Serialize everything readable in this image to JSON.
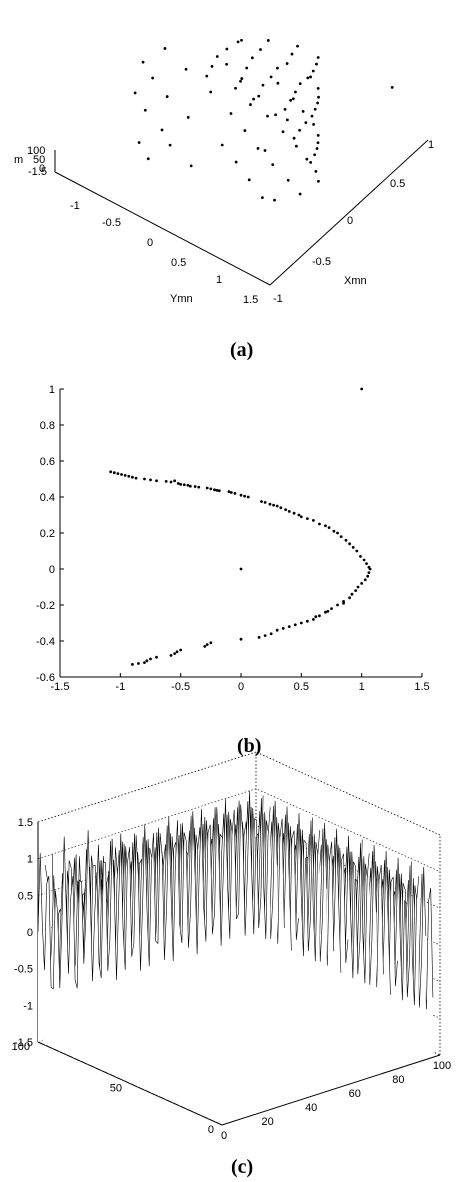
{
  "captions": {
    "a": "(a)",
    "b": "(b)",
    "c": "(c)"
  },
  "chart_data": [
    {
      "type": "scatter",
      "projection": "3d",
      "title": "",
      "xlabel": "Xmn",
      "ylabel": "Ymn",
      "zlabel": "m",
      "xticks": [
        "-1",
        "-0.5",
        "0",
        "0.5",
        "1"
      ],
      "yticks": [
        "-1.5",
        "-1",
        "-0.5",
        "0",
        "0.5",
        "1",
        "1.5"
      ],
      "zticks": [
        "0",
        "50",
        "100"
      ],
      "xlim": [
        -1,
        1
      ],
      "ylim": [
        -1.5,
        1.5
      ],
      "zlim": [
        0,
        100
      ],
      "grid": false,
      "point_color": "#000000"
    },
    {
      "type": "scatter",
      "title": "",
      "xlabel": "",
      "ylabel": "",
      "xlim": [
        -1.5,
        1.5
      ],
      "ylim": [
        -0.6,
        1
      ],
      "xticks": [
        "-1.5",
        "-1",
        "-0.5",
        "0",
        "0.5",
        "1",
        "1.5"
      ],
      "yticks": [
        "-0.6",
        "-0.4",
        "-0.2",
        "0",
        "0.2",
        "0.4",
        "0.6",
        "0.8",
        "1"
      ],
      "grid": false,
      "point_color": "#000000",
      "points": [
        [
          -1.08,
          0.54
        ],
        [
          -1.05,
          0.535
        ],
        [
          -1.02,
          0.53
        ],
        [
          -0.99,
          0.525
        ],
        [
          -0.96,
          0.52
        ],
        [
          -0.93,
          0.515
        ],
        [
          -0.9,
          0.51
        ],
        [
          -0.87,
          0.505
        ],
        [
          -0.8,
          0.5
        ],
        [
          -0.75,
          0.495
        ],
        [
          -0.7,
          0.49
        ],
        [
          -0.62,
          0.487
        ],
        [
          -0.58,
          0.483
        ],
        [
          -0.55,
          0.49
        ],
        [
          -0.52,
          0.475
        ],
        [
          -0.5,
          0.47
        ],
        [
          -0.47,
          0.468
        ],
        [
          -0.44,
          0.465
        ],
        [
          -0.42,
          0.46
        ],
        [
          -0.38,
          0.458
        ],
        [
          -0.35,
          0.455
        ],
        [
          -0.28,
          0.45
        ],
        [
          -0.25,
          0.445
        ],
        [
          -0.22,
          0.44
        ],
        [
          -0.2,
          0.437
        ],
        [
          -0.18,
          0.435
        ],
        [
          -0.1,
          0.43
        ],
        [
          -0.08,
          0.425
        ],
        [
          -0.05,
          0.42
        ],
        [
          0.0,
          0.41
        ],
        [
          0.03,
          0.405
        ],
        [
          0.06,
          0.4
        ],
        [
          0.17,
          0.375
        ],
        [
          0.2,
          0.37
        ],
        [
          0.24,
          0.36
        ],
        [
          0.27,
          0.355
        ],
        [
          0.3,
          0.35
        ],
        [
          0.33,
          0.34
        ],
        [
          0.37,
          0.33
        ],
        [
          0.4,
          0.32
        ],
        [
          0.44,
          0.31
        ],
        [
          0.48,
          0.3
        ],
        [
          0.5,
          0.29
        ],
        [
          0.55,
          0.28
        ],
        [
          0.6,
          0.27
        ],
        [
          0.65,
          0.25
        ],
        [
          0.7,
          0.24
        ],
        [
          0.73,
          0.23
        ],
        [
          0.77,
          0.21
        ],
        [
          0.8,
          0.2
        ],
        [
          0.83,
          0.18
        ],
        [
          0.87,
          0.16
        ],
        [
          0.9,
          0.14
        ],
        [
          0.93,
          0.12
        ],
        [
          0.96,
          0.1
        ],
        [
          0.99,
          0.07
        ],
        [
          1.02,
          0.05
        ],
        [
          1.04,
          0.03
        ],
        [
          1.06,
          0.01
        ],
        [
          1.07,
          0.0
        ],
        [
          1.06,
          -0.02
        ],
        [
          1.05,
          -0.04
        ],
        [
          1.03,
          -0.06
        ],
        [
          1.0,
          -0.08
        ],
        [
          0.97,
          -0.1
        ],
        [
          0.95,
          -0.12
        ],
        [
          0.92,
          -0.14
        ],
        [
          0.9,
          -0.16
        ],
        [
          0.85,
          -0.18
        ],
        [
          0.8,
          -0.2
        ],
        [
          0.75,
          -0.22
        ],
        [
          0.7,
          -0.24
        ],
        [
          0.65,
          -0.26
        ],
        [
          0.6,
          -0.28
        ],
        [
          0.55,
          -0.29
        ],
        [
          0.5,
          -0.3
        ],
        [
          0.45,
          -0.31
        ],
        [
          0.4,
          -0.32
        ],
        [
          0.35,
          -0.33
        ],
        [
          0.3,
          -0.34
        ],
        [
          0.25,
          -0.36
        ],
        [
          0.2,
          -0.37
        ],
        [
          0.15,
          -0.38
        ],
        [
          0.0,
          -0.39
        ],
        [
          -0.25,
          -0.41
        ],
        [
          -0.28,
          -0.42
        ],
        [
          -0.3,
          -0.43
        ],
        [
          -0.5,
          -0.45
        ],
        [
          -0.53,
          -0.46
        ],
        [
          -0.55,
          -0.47
        ],
        [
          -0.58,
          -0.48
        ],
        [
          -0.7,
          -0.49
        ],
        [
          -0.75,
          -0.5
        ],
        [
          -0.78,
          -0.51
        ],
        [
          -0.8,
          -0.52
        ],
        [
          -0.85,
          -0.525
        ],
        [
          -0.9,
          -0.53
        ],
        [
          0.0,
          0.0
        ],
        [
          1.0,
          1.0
        ],
        [
          0.85,
          -0.19
        ],
        [
          0.72,
          -0.235
        ],
        [
          0.62,
          -0.265
        ]
      ]
    },
    {
      "type": "surface",
      "projection": "3d",
      "title": "",
      "xlabel": "",
      "ylabel": "",
      "zlabel": "",
      "xlim": [
        0,
        100
      ],
      "ylim": [
        0,
        100
      ],
      "zlim": [
        -1.5,
        1.5
      ],
      "xticks": [
        "0",
        "20",
        "40",
        "60",
        "80",
        "100"
      ],
      "yticks": [
        "0",
        "50",
        "100"
      ],
      "zticks": [
        "-1.5",
        "-1",
        "-0.5",
        "0",
        "0.5",
        "1",
        "1.5"
      ],
      "grid": true,
      "line_color": "#000000"
    }
  ]
}
